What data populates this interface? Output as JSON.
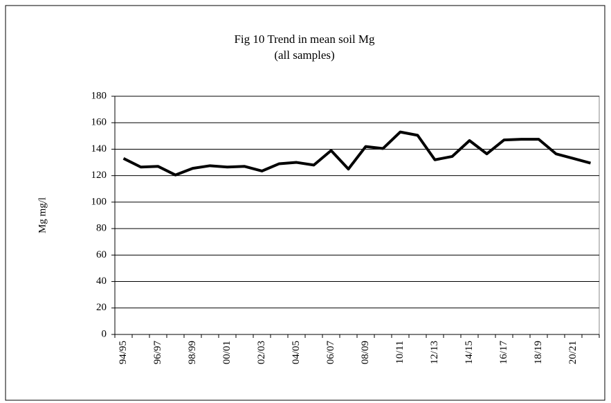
{
  "chart_data": {
    "type": "line",
    "title": "Fig 10 Trend in mean soil Mg",
    "subtitle": "(all samples)",
    "y_label": "Mg mg/l",
    "categories": [
      "94/95",
      null,
      "96/97",
      null,
      "98/99",
      null,
      "00/01",
      null,
      "02/03",
      null,
      "04/05",
      null,
      "06/07",
      null,
      "08/09",
      null,
      "10/11",
      null,
      "12/13",
      null,
      "14/15",
      null,
      "16/17",
      null,
      "18/19",
      null,
      "20/21",
      null
    ],
    "series": [
      {
        "name": "Mg",
        "color": "#000000",
        "values": [
          133,
          126.5,
          127,
          120.5,
          125.5,
          127.5,
          126.5,
          127,
          123.5,
          129,
          130,
          128,
          139,
          125,
          142,
          140.5,
          153,
          150.5,
          132,
          134.5,
          146.5,
          136.5,
          147,
          147.5,
          147.5,
          136.5,
          133,
          129.5
        ]
      }
    ],
    "ylim": [
      0,
      180
    ],
    "yticks": [
      0,
      20,
      40,
      60,
      80,
      100,
      120,
      140,
      160,
      180
    ],
    "grid": true
  }
}
